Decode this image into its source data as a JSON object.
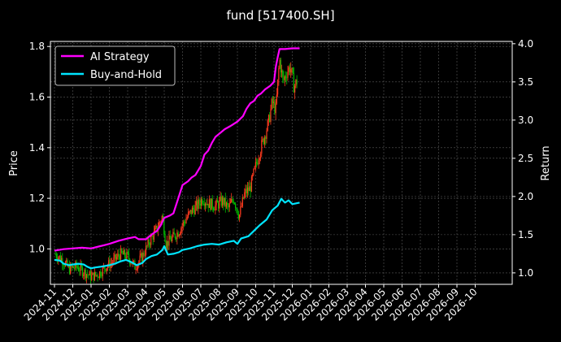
{
  "chart_data": {
    "type": "line",
    "title": "fund [517400.SH]",
    "y_left_label": "Price",
    "y_right_label": "Return",
    "y_left_lim": [
      0.86,
      1.82
    ],
    "y_right_lim": [
      0.85,
      4.03
    ],
    "y_left_ticks": [
      "1.0",
      "1.2",
      "1.4",
      "1.6",
      "1.8"
    ],
    "y_right_ticks": [
      "1.0",
      "1.5",
      "2.0",
      "2.5",
      "3.0",
      "3.5",
      "4.0"
    ],
    "x_ticks": [
      "2024-11",
      "2024-12",
      "2025-01",
      "2025-02",
      "2025-03",
      "2025-04",
      "2025-05",
      "2025-06",
      "2025-07",
      "2025-08",
      "2025-09",
      "2025-10",
      "2025-11",
      "2025-12",
      "2026-01",
      "2026-02",
      "2026-03",
      "2026-04",
      "2026-05",
      "2026-06",
      "2026-07",
      "2026-08",
      "2026-09",
      "2026-10"
    ],
    "grid": true,
    "legend_position": "top-left",
    "colors": {
      "ai": "#ff00ff",
      "bh": "#00e5ff",
      "up": "#ff3b1f",
      "down": "#00c000"
    },
    "series": [
      {
        "name": "AI Strategy",
        "axis": "right",
        "points": [
          [
            0.0,
            1.29
          ],
          [
            0.5,
            1.31
          ],
          [
            1.0,
            1.32
          ],
          [
            1.5,
            1.33
          ],
          [
            2.0,
            1.32
          ],
          [
            2.5,
            1.35
          ],
          [
            3.0,
            1.38
          ],
          [
            3.5,
            1.42
          ],
          [
            4.0,
            1.45
          ],
          [
            4.4,
            1.47
          ],
          [
            4.6,
            1.44
          ],
          [
            5.0,
            1.44
          ],
          [
            5.3,
            1.5
          ],
          [
            5.6,
            1.55
          ],
          [
            5.8,
            1.62
          ],
          [
            6.0,
            1.72
          ],
          [
            6.3,
            1.75
          ],
          [
            6.5,
            1.78
          ],
          [
            6.8,
            2.0
          ],
          [
            7.0,
            2.15
          ],
          [
            7.3,
            2.2
          ],
          [
            7.5,
            2.25
          ],
          [
            7.7,
            2.28
          ],
          [
            8.0,
            2.4
          ],
          [
            8.2,
            2.55
          ],
          [
            8.4,
            2.6
          ],
          [
            8.6,
            2.7
          ],
          [
            8.8,
            2.78
          ],
          [
            9.0,
            2.82
          ],
          [
            9.3,
            2.88
          ],
          [
            9.6,
            2.92
          ],
          [
            10.0,
            2.98
          ],
          [
            10.3,
            3.05
          ],
          [
            10.5,
            3.15
          ],
          [
            10.7,
            3.22
          ],
          [
            10.9,
            3.25
          ],
          [
            11.1,
            3.32
          ],
          [
            11.3,
            3.35
          ],
          [
            11.5,
            3.4
          ],
          [
            11.8,
            3.45
          ],
          [
            12.0,
            3.5
          ],
          [
            12.1,
            3.7
          ],
          [
            12.2,
            3.82
          ],
          [
            12.3,
            3.93
          ],
          [
            12.6,
            3.93
          ],
          [
            13.0,
            3.94
          ],
          [
            13.4,
            3.94
          ]
        ]
      },
      {
        "name": "Buy-and-Hold",
        "axis": "right",
        "points": [
          [
            0.0,
            1.17
          ],
          [
            0.3,
            1.16
          ],
          [
            0.5,
            1.12
          ],
          [
            0.8,
            1.1
          ],
          [
            1.0,
            1.11
          ],
          [
            1.3,
            1.12
          ],
          [
            1.6,
            1.11
          ],
          [
            1.8,
            1.08
          ],
          [
            2.0,
            1.06
          ],
          [
            2.2,
            1.07
          ],
          [
            2.5,
            1.08
          ],
          [
            3.0,
            1.1
          ],
          [
            3.3,
            1.12
          ],
          [
            3.6,
            1.15
          ],
          [
            3.9,
            1.17
          ],
          [
            4.2,
            1.14
          ],
          [
            4.5,
            1.1
          ],
          [
            4.8,
            1.13
          ],
          [
            5.0,
            1.18
          ],
          [
            5.3,
            1.22
          ],
          [
            5.6,
            1.24
          ],
          [
            5.9,
            1.3
          ],
          [
            6.0,
            1.35
          ],
          [
            6.2,
            1.24
          ],
          [
            6.5,
            1.25
          ],
          [
            6.8,
            1.27
          ],
          [
            7.0,
            1.3
          ],
          [
            7.4,
            1.32
          ],
          [
            7.8,
            1.35
          ],
          [
            8.2,
            1.37
          ],
          [
            8.6,
            1.38
          ],
          [
            9.0,
            1.37
          ],
          [
            9.4,
            1.4
          ],
          [
            9.8,
            1.42
          ],
          [
            10.0,
            1.38
          ],
          [
            10.2,
            1.45
          ],
          [
            10.6,
            1.48
          ],
          [
            10.9,
            1.55
          ],
          [
            11.2,
            1.62
          ],
          [
            11.6,
            1.7
          ],
          [
            11.9,
            1.82
          ],
          [
            12.2,
            1.88
          ],
          [
            12.4,
            1.97
          ],
          [
            12.6,
            1.92
          ],
          [
            12.8,
            1.95
          ],
          [
            13.0,
            1.9
          ],
          [
            13.4,
            1.92
          ]
        ]
      },
      {
        "name": "Price",
        "axis": "left",
        "points": [
          [
            0.0,
            0.98
          ],
          [
            0.4,
            0.96
          ],
          [
            0.8,
            0.92
          ],
          [
            1.2,
            0.93
          ],
          [
            1.6,
            0.91
          ],
          [
            2.0,
            0.89
          ],
          [
            2.4,
            0.9
          ],
          [
            2.8,
            0.93
          ],
          [
            3.2,
            0.95
          ],
          [
            3.6,
            0.98
          ],
          [
            4.0,
            0.97
          ],
          [
            4.4,
            0.93
          ],
          [
            4.8,
            0.97
          ],
          [
            5.2,
            1.03
          ],
          [
            5.6,
            1.08
          ],
          [
            5.9,
            1.13
          ],
          [
            6.1,
            1.02
          ],
          [
            6.4,
            1.04
          ],
          [
            6.8,
            1.07
          ],
          [
            7.2,
            1.12
          ],
          [
            7.5,
            1.15
          ],
          [
            7.8,
            1.17
          ],
          [
            8.1,
            1.2
          ],
          [
            8.4,
            1.18
          ],
          [
            8.8,
            1.17
          ],
          [
            9.2,
            1.19
          ],
          [
            9.5,
            1.16
          ],
          [
            9.8,
            1.2
          ],
          [
            10.1,
            1.13
          ],
          [
            10.4,
            1.22
          ],
          [
            10.7,
            1.24
          ],
          [
            10.9,
            1.3
          ],
          [
            11.2,
            1.38
          ],
          [
            11.5,
            1.45
          ],
          [
            11.7,
            1.5
          ],
          [
            11.9,
            1.58
          ],
          [
            12.1,
            1.55
          ],
          [
            12.3,
            1.75
          ],
          [
            12.5,
            1.66
          ],
          [
            12.7,
            1.7
          ],
          [
            12.9,
            1.72
          ],
          [
            13.1,
            1.64
          ],
          [
            13.3,
            1.67
          ]
        ]
      }
    ]
  }
}
